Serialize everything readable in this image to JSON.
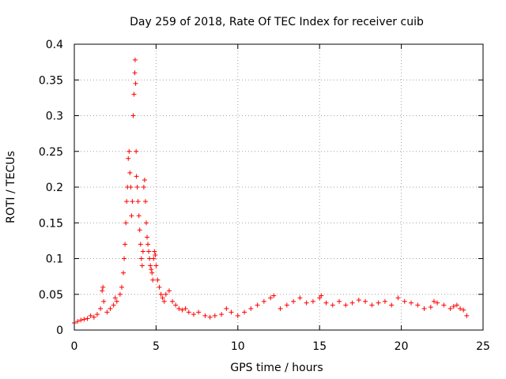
{
  "chart_data": {
    "type": "scatter",
    "title": "Day 259 of 2018, Rate Of TEC Index for receiver cuib",
    "xlabel": "GPS time / hours",
    "ylabel": "ROTI / TECUs",
    "xlim": [
      0,
      25
    ],
    "ylim": [
      0,
      0.4
    ],
    "xticks": [
      0,
      5,
      10,
      15,
      20,
      25
    ],
    "xtick_labels": [
      "0",
      "5",
      "10",
      "15",
      "20",
      "25"
    ],
    "yticks": [
      0,
      0.05,
      0.1,
      0.15,
      0.2,
      0.25,
      0.3,
      0.35,
      0.4
    ],
    "ytick_labels": [
      "0",
      "0.05",
      "0.1",
      "0.15",
      "0.2",
      "0.25",
      "0.3",
      "0.35",
      "0.4"
    ],
    "grid": true,
    "marker": "plus",
    "color": "#ff0000",
    "series": [
      {
        "name": "ROTI",
        "x": [
          0.0,
          0.2,
          0.4,
          0.6,
          0.8,
          1.0,
          1.2,
          1.4,
          1.6,
          1.7,
          1.75,
          1.8,
          2.0,
          2.2,
          2.4,
          2.5,
          2.6,
          2.8,
          2.9,
          3.0,
          3.05,
          3.1,
          3.15,
          3.2,
          3.25,
          3.3,
          3.35,
          3.4,
          3.45,
          3.5,
          3.55,
          3.6,
          3.65,
          3.7,
          3.72,
          3.75,
          3.78,
          3.8,
          3.85,
          3.9,
          3.95,
          4.0,
          4.05,
          4.1,
          4.15,
          4.2,
          4.25,
          4.3,
          4.35,
          4.4,
          4.45,
          4.5,
          4.55,
          4.6,
          4.65,
          4.7,
          4.75,
          4.8,
          4.85,
          4.9,
          4.95,
          5.0,
          5.1,
          5.2,
          5.3,
          5.4,
          5.5,
          5.6,
          5.8,
          6.0,
          6.2,
          6.4,
          6.6,
          6.8,
          7.0,
          7.3,
          7.6,
          8.0,
          8.3,
          8.6,
          9.0,
          9.3,
          9.6,
          10.0,
          10.4,
          10.8,
          11.2,
          11.6,
          12.0,
          12.2,
          12.6,
          13.0,
          13.4,
          13.8,
          14.2,
          14.6,
          15.0,
          15.1,
          15.4,
          15.8,
          16.2,
          16.6,
          17.0,
          17.4,
          17.8,
          18.2,
          18.6,
          19.0,
          19.4,
          19.8,
          20.2,
          20.6,
          21.0,
          21.4,
          21.8,
          22.0,
          22.2,
          22.6,
          23.0,
          23.2,
          23.4,
          23.6,
          23.8,
          24.0
        ],
        "y": [
          0.01,
          0.012,
          0.014,
          0.015,
          0.016,
          0.02,
          0.018,
          0.022,
          0.03,
          0.055,
          0.06,
          0.04,
          0.025,
          0.03,
          0.035,
          0.045,
          0.04,
          0.05,
          0.06,
          0.08,
          0.1,
          0.12,
          0.15,
          0.18,
          0.2,
          0.24,
          0.25,
          0.22,
          0.2,
          0.16,
          0.18,
          0.3,
          0.33,
          0.36,
          0.378,
          0.345,
          0.25,
          0.215,
          0.2,
          0.18,
          0.16,
          0.14,
          0.12,
          0.1,
          0.09,
          0.11,
          0.2,
          0.21,
          0.18,
          0.15,
          0.13,
          0.12,
          0.11,
          0.1,
          0.09,
          0.085,
          0.08,
          0.07,
          0.1,
          0.11,
          0.105,
          0.09,
          0.07,
          0.06,
          0.05,
          0.045,
          0.04,
          0.05,
          0.055,
          0.04,
          0.035,
          0.03,
          0.028,
          0.03,
          0.025,
          0.022,
          0.025,
          0.02,
          0.018,
          0.02,
          0.022,
          0.03,
          0.025,
          0.02,
          0.025,
          0.03,
          0.035,
          0.04,
          0.045,
          0.048,
          0.03,
          0.035,
          0.04,
          0.045,
          0.038,
          0.04,
          0.045,
          0.048,
          0.038,
          0.035,
          0.04,
          0.035,
          0.038,
          0.042,
          0.04,
          0.035,
          0.038,
          0.04,
          0.035,
          0.045,
          0.04,
          0.038,
          0.035,
          0.03,
          0.032,
          0.04,
          0.038,
          0.035,
          0.03,
          0.033,
          0.035,
          0.03,
          0.028,
          0.02
        ]
      }
    ]
  }
}
